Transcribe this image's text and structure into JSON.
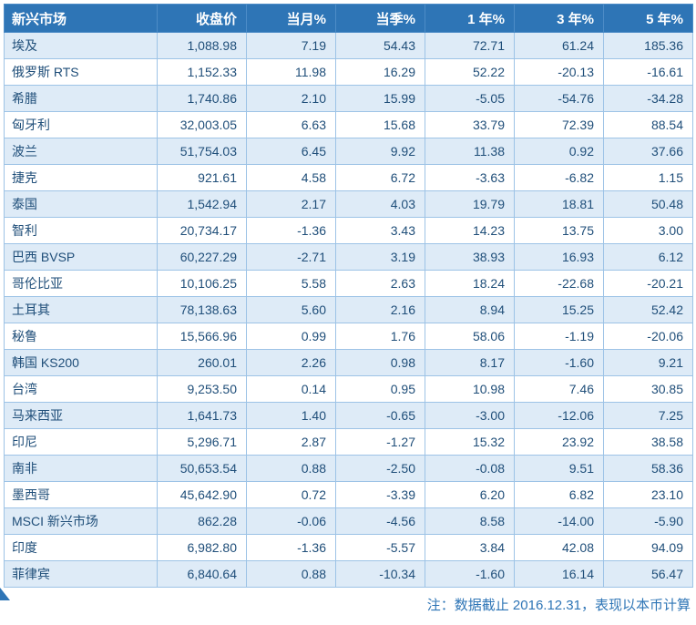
{
  "chart_data": {
    "type": "table",
    "title": "新兴市场",
    "columns": [
      "新兴市场",
      "收盘价",
      "当月%",
      "当季%",
      "1 年%",
      "3 年%",
      "5 年%"
    ],
    "rows": [
      [
        "埃及",
        "1,088.98",
        "7.19",
        "54.43",
        "72.71",
        "61.24",
        "185.36"
      ],
      [
        "俄罗斯 RTS",
        "1,152.33",
        "11.98",
        "16.29",
        "52.22",
        "-20.13",
        "-16.61"
      ],
      [
        "希腊",
        "1,740.86",
        "2.10",
        "15.99",
        "-5.05",
        "-54.76",
        "-34.28"
      ],
      [
        "匈牙利",
        "32,003.05",
        "6.63",
        "15.68",
        "33.79",
        "72.39",
        "88.54"
      ],
      [
        "波兰",
        "51,754.03",
        "6.45",
        "9.92",
        "11.38",
        "0.92",
        "37.66"
      ],
      [
        "捷克",
        "921.61",
        "4.58",
        "6.72",
        "-3.63",
        "-6.82",
        "1.15"
      ],
      [
        "泰国",
        "1,542.94",
        "2.17",
        "4.03",
        "19.79",
        "18.81",
        "50.48"
      ],
      [
        "智利",
        "20,734.17",
        "-1.36",
        "3.43",
        "14.23",
        "13.75",
        "3.00"
      ],
      [
        "巴西 BVSP",
        "60,227.29",
        "-2.71",
        "3.19",
        "38.93",
        "16.93",
        "6.12"
      ],
      [
        "哥伦比亚",
        "10,106.25",
        "5.58",
        "2.63",
        "18.24",
        "-22.68",
        "-20.21"
      ],
      [
        "土耳其",
        "78,138.63",
        "5.60",
        "2.16",
        "8.94",
        "15.25",
        "52.42"
      ],
      [
        "秘鲁",
        "15,566.96",
        "0.99",
        "1.76",
        "58.06",
        "-1.19",
        "-20.06"
      ],
      [
        "韩国 KS200",
        "260.01",
        "2.26",
        "0.98",
        "8.17",
        "-1.60",
        "9.21"
      ],
      [
        "台湾",
        "9,253.50",
        "0.14",
        "0.95",
        "10.98",
        "7.46",
        "30.85"
      ],
      [
        "马来西亚",
        "1,641.73",
        "1.40",
        "-0.65",
        "-3.00",
        "-12.06",
        "7.25"
      ],
      [
        "印尼",
        "5,296.71",
        "2.87",
        "-1.27",
        "15.32",
        "23.92",
        "38.58"
      ],
      [
        "南非",
        "50,653.54",
        "0.88",
        "-2.50",
        "-0.08",
        "9.51",
        "58.36"
      ],
      [
        "墨西哥",
        "45,642.90",
        "0.72",
        "-3.39",
        "6.20",
        "6.82",
        "23.10"
      ],
      [
        "MSCI 新兴市场",
        "862.28",
        "-0.06",
        "-4.56",
        "8.58",
        "-14.00",
        "-5.90"
      ],
      [
        "印度",
        "6,982.80",
        "-1.36",
        "-5.57",
        "3.84",
        "42.08",
        "94.09"
      ],
      [
        "菲律宾",
        "6,840.64",
        "0.88",
        "-10.34",
        "-1.60",
        "16.14",
        "56.47"
      ]
    ],
    "note": "注：数据截止 2016.12.31，表现以本币计算"
  },
  "colors": {
    "header_bg": "#2E75B6",
    "row_alt_bg": "#DEEBF7",
    "row_bg": "#FFFFFF",
    "text": "#1F4E79",
    "border": "#9DC3E6",
    "note_text": "#2E75B6"
  }
}
